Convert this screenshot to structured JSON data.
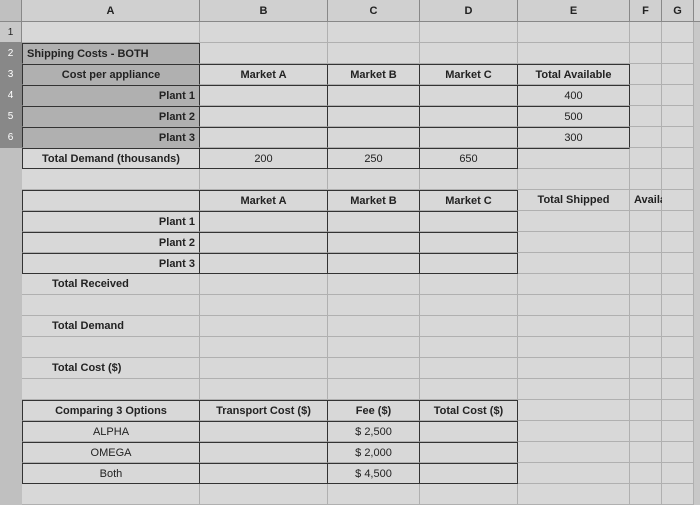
{
  "columns": [
    "A",
    "B",
    "C",
    "D",
    "E",
    "F",
    "G"
  ],
  "rowNumbers": [
    "1",
    "2",
    "3",
    "4",
    "5",
    "6"
  ],
  "section1": {
    "title": "Shipping Costs - BOTH",
    "header": "Cost per appliance",
    "marketA": "Market A",
    "marketB": "Market B",
    "marketC": "Market C",
    "totalAvail": "Total Available",
    "plant1": "Plant 1",
    "plant2": "Plant 2",
    "plant3": "Plant 3",
    "avail1": "400",
    "avail2": "500",
    "avail3": "300",
    "totalDemand": "Total Demand (thousands)",
    "demA": "200",
    "demB": "250",
    "demC": "650"
  },
  "section2": {
    "marketA": "Market A",
    "marketB": "Market B",
    "marketC": "Market C",
    "totalShipped": "Total Shipped",
    "available": "Available",
    "plant1": "Plant 1",
    "plant2": "Plant 2",
    "plant3": "Plant 3",
    "totalReceived": "Total Received",
    "totalDemand": "Total Demand",
    "totalCost": "Total Cost ($)"
  },
  "section3": {
    "header": "Comparing 3 Options",
    "transportCost": "Transport Cost ($)",
    "fee": "Fee ($)",
    "totalCost": "Total Cost ($)",
    "alpha": "ALPHA",
    "omega": "OMEGA",
    "both": "Both",
    "feeAlpha": "$   2,500",
    "feeOmega": "$   2,000",
    "feeBoth": "$   4,500"
  },
  "style": {
    "bg": "#d8d8d8",
    "border": "#333",
    "grid": "#b0b0b0"
  }
}
